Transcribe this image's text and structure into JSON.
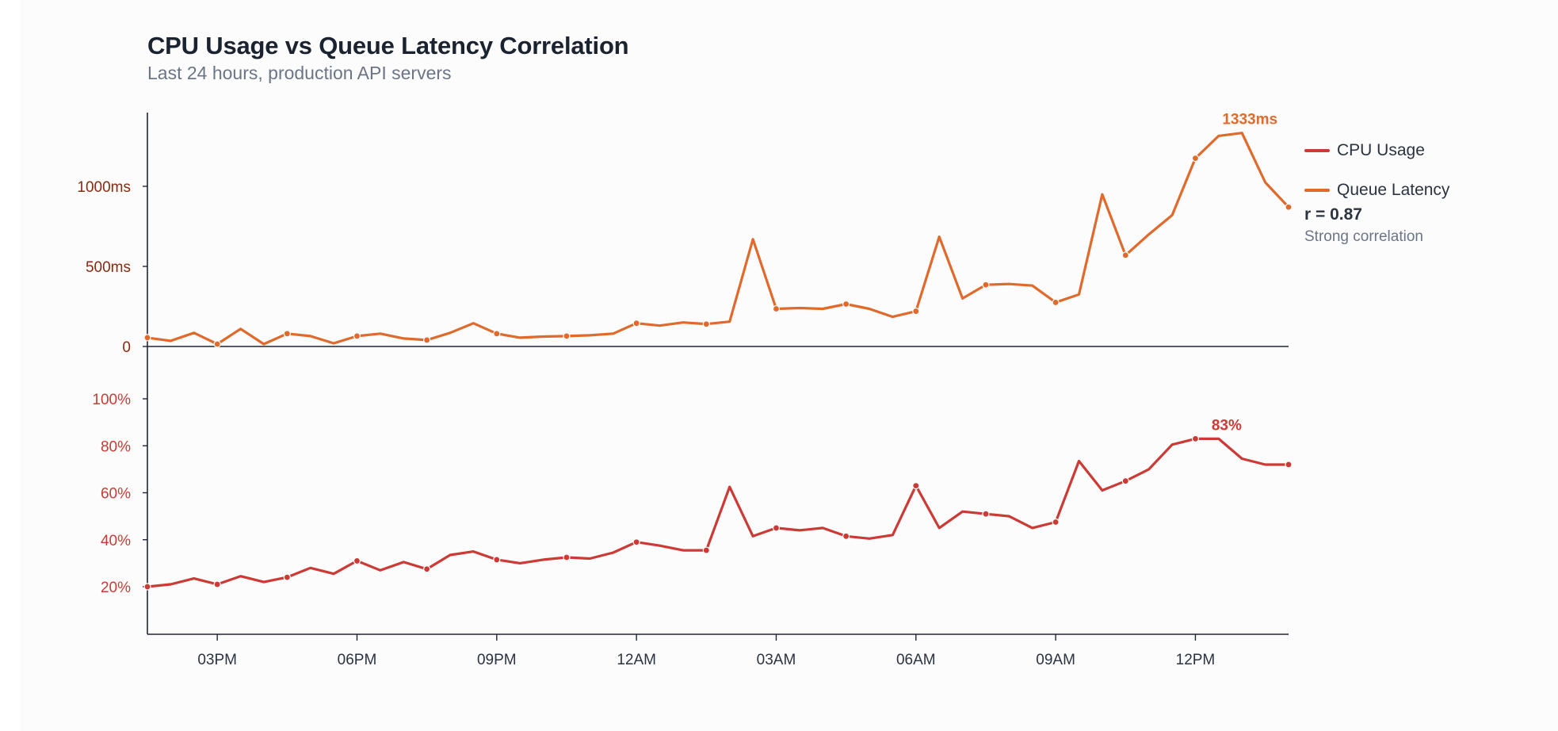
{
  "chart_data": {
    "type": "line",
    "title": "CPU Usage vs Queue Latency Correlation",
    "subtitle": "Last 24 hours, production API servers",
    "x": [
      "13:30",
      "14:00",
      "14:30",
      "15:00",
      "15:30",
      "16:00",
      "16:30",
      "17:00",
      "17:30",
      "18:00",
      "18:30",
      "19:00",
      "19:30",
      "20:00",
      "20:30",
      "21:00",
      "21:30",
      "22:00",
      "22:30",
      "23:00",
      "23:30",
      "00:00",
      "00:30",
      "01:00",
      "01:30",
      "02:00",
      "02:30",
      "03:00",
      "03:30",
      "04:00",
      "04:30",
      "05:00",
      "05:30",
      "06:00",
      "06:30",
      "07:00",
      "07:30",
      "08:00",
      "08:30",
      "09:00",
      "09:30",
      "10:00",
      "10:30",
      "11:00",
      "11:30",
      "12:00",
      "12:30",
      "13:00",
      "13:30",
      "14:00"
    ],
    "x_ticks": [
      "03PM",
      "06PM",
      "09PM",
      "12AM",
      "03AM",
      "06AM",
      "09AM",
      "12PM"
    ],
    "panels": [
      {
        "name": "Queue Latency",
        "color": "#e06a2c",
        "tick_color": "#8a2a0e",
        "y_ticks": [
          "0",
          "500ms",
          "1000ms"
        ],
        "y_tick_values": [
          0,
          500,
          1000
        ],
        "ylim": [
          0,
          1400
        ],
        "values": [
          55,
          35,
          85,
          15,
          110,
          15,
          80,
          65,
          20,
          65,
          80,
          50,
          40,
          85,
          145,
          80,
          55,
          62,
          65,
          70,
          80,
          145,
          130,
          150,
          140,
          155,
          670,
          235,
          240,
          235,
          265,
          235,
          185,
          220,
          685,
          300,
          385,
          390,
          380,
          275,
          325,
          950,
          570,
          700,
          820,
          1175,
          1315,
          1333,
          1025,
          870
        ],
        "marked": [
          0,
          3,
          6,
          9,
          12,
          15,
          18,
          21,
          24,
          27,
          30,
          33,
          36,
          39,
          42,
          45,
          49
        ],
        "peak_label": "1333ms",
        "peak_index": 47
      },
      {
        "name": "CPU Usage",
        "color": "#cc3a35",
        "tick_color": "#cc3a35",
        "y_ticks": [
          "20%",
          "40%",
          "60%",
          "80%",
          "100%"
        ],
        "y_tick_values": [
          20,
          40,
          60,
          80,
          100
        ],
        "ylim": [
          0,
          110
        ],
        "values": [
          20,
          21,
          23.5,
          21,
          24.5,
          22,
          24,
          28,
          25.5,
          31,
          27,
          30.5,
          27.5,
          33.5,
          35,
          31.5,
          30,
          31.5,
          32.5,
          32,
          34.5,
          39,
          37.5,
          35.5,
          35.5,
          62.5,
          41.5,
          45,
          44,
          45,
          41.5,
          40.5,
          42,
          63,
          45,
          52,
          51,
          50,
          45,
          47.5,
          73.5,
          61,
          65,
          70,
          80.5,
          83,
          83,
          74.5,
          72,
          72
        ],
        "marked": [
          0,
          3,
          6,
          9,
          12,
          15,
          18,
          21,
          24,
          27,
          30,
          33,
          36,
          39,
          42,
          45,
          49
        ],
        "peak_label": "83%",
        "peak_index": 46
      }
    ],
    "legend": [
      "CPU Usage",
      "Queue Latency"
    ],
    "legend_colors": [
      "#cc3a35",
      "#e06a2c"
    ],
    "legend_position": "right",
    "annotation": {
      "value": "r = 0.87",
      "label": "Strong correlation"
    },
    "grid": false
  }
}
